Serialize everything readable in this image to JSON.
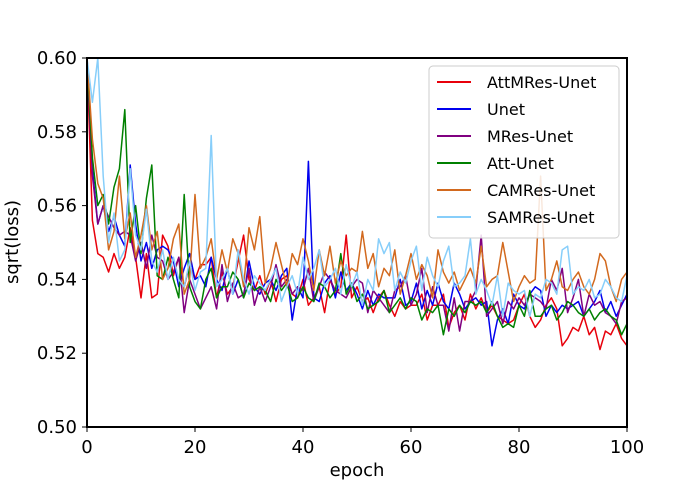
{
  "chart_data": {
    "type": "line",
    "xlabel": "epoch",
    "ylabel": "sqrt(loss)",
    "xlim": [
      0,
      100
    ],
    "ylim": [
      0.5,
      0.6
    ],
    "xticks": [
      0,
      20,
      40,
      60,
      80,
      100
    ],
    "yticks": [
      0.5,
      0.52,
      0.54,
      0.56,
      0.58,
      0.6
    ],
    "xtick_labels": [
      "0",
      "20",
      "40",
      "60",
      "80",
      "100"
    ],
    "ytick_labels": [
      "0.50",
      "0.52",
      "0.54",
      "0.56",
      "0.58",
      "0.60"
    ],
    "grid": false,
    "legend_position": "top-right",
    "x": [
      0,
      1,
      2,
      3,
      4,
      5,
      6,
      7,
      8,
      9,
      10,
      11,
      12,
      13,
      14,
      15,
      16,
      17,
      18,
      19,
      20,
      21,
      22,
      23,
      24,
      25,
      26,
      27,
      28,
      29,
      30,
      31,
      32,
      33,
      34,
      35,
      36,
      37,
      38,
      39,
      40,
      41,
      42,
      43,
      44,
      45,
      46,
      47,
      48,
      49,
      50,
      51,
      52,
      53,
      54,
      55,
      56,
      57,
      58,
      59,
      60,
      61,
      62,
      63,
      64,
      65,
      66,
      67,
      68,
      69,
      70,
      71,
      72,
      73,
      74,
      75,
      76,
      77,
      78,
      79,
      80,
      81,
      82,
      83,
      84,
      85,
      86,
      87,
      88,
      89,
      90,
      91,
      92,
      93,
      94,
      95,
      96,
      97,
      98,
      99,
      100
    ],
    "series": [
      {
        "name": "AttMRes-Unet",
        "color": "#e8000b",
        "values": [
          0.6,
          0.556,
          0.547,
          0.546,
          0.542,
          0.547,
          0.543,
          0.546,
          0.554,
          0.546,
          0.535,
          0.547,
          0.535,
          0.536,
          0.552,
          0.549,
          0.541,
          0.546,
          0.538,
          0.544,
          0.54,
          0.544,
          0.544,
          0.546,
          0.535,
          0.542,
          0.536,
          0.538,
          0.545,
          0.552,
          0.54,
          0.537,
          0.541,
          0.536,
          0.54,
          0.534,
          0.54,
          0.541,
          0.536,
          0.535,
          0.54,
          0.533,
          0.535,
          0.538,
          0.531,
          0.54,
          0.536,
          0.538,
          0.552,
          0.535,
          0.538,
          0.534,
          0.535,
          0.531,
          0.535,
          0.537,
          0.533,
          0.53,
          0.534,
          0.532,
          0.533,
          0.533,
          0.536,
          0.529,
          0.533,
          0.533,
          0.536,
          0.527,
          0.531,
          0.533,
          0.529,
          0.536,
          0.532,
          0.535,
          0.531,
          0.533,
          0.53,
          0.529,
          0.528,
          0.529,
          0.533,
          0.536,
          0.53,
          0.527,
          0.529,
          0.533,
          0.535,
          0.532,
          0.522,
          0.524,
          0.527,
          0.526,
          0.53,
          0.525,
          0.527,
          0.521,
          0.526,
          0.525,
          0.528,
          0.524,
          0.522
        ]
      },
      {
        "name": "Unet",
        "color": "#0000ee",
        "values": [
          0.6,
          0.57,
          0.555,
          0.56,
          0.553,
          0.557,
          0.552,
          0.549,
          0.571,
          0.555,
          0.545,
          0.55,
          0.543,
          0.548,
          0.549,
          0.548,
          0.545,
          0.538,
          0.543,
          0.547,
          0.54,
          0.541,
          0.538,
          0.546,
          0.54,
          0.537,
          0.543,
          0.536,
          0.54,
          0.535,
          0.545,
          0.538,
          0.536,
          0.539,
          0.54,
          0.537,
          0.541,
          0.543,
          0.529,
          0.538,
          0.535,
          0.572,
          0.535,
          0.534,
          0.539,
          0.541,
          0.535,
          0.542,
          0.537,
          0.539,
          0.536,
          0.532,
          0.537,
          0.533,
          0.536,
          0.535,
          0.535,
          0.535,
          0.54,
          0.533,
          0.534,
          0.539,
          0.532,
          0.537,
          0.533,
          0.539,
          0.534,
          0.532,
          0.539,
          0.536,
          0.532,
          0.534,
          0.535,
          0.533,
          0.534,
          0.522,
          0.529,
          0.532,
          0.528,
          0.536,
          0.533,
          0.532,
          0.536,
          0.538,
          0.537,
          0.53,
          0.533,
          0.531,
          0.533,
          0.532,
          0.533,
          0.534,
          0.53,
          0.532,
          0.534,
          0.537,
          0.531,
          0.534,
          0.53,
          0.533,
          0.536
        ]
      },
      {
        "name": "MRes-Unet",
        "color": "#800080",
        "values": [
          0.6,
          0.568,
          0.555,
          0.56,
          0.557,
          0.554,
          0.552,
          0.553,
          0.552,
          0.545,
          0.55,
          0.543,
          0.552,
          0.546,
          0.545,
          0.54,
          0.542,
          0.546,
          0.531,
          0.54,
          0.536,
          0.532,
          0.535,
          0.538,
          0.532,
          0.544,
          0.534,
          0.539,
          0.535,
          0.536,
          0.543,
          0.533,
          0.538,
          0.534,
          0.538,
          0.544,
          0.538,
          0.54,
          0.536,
          0.538,
          0.537,
          0.543,
          0.534,
          0.538,
          0.542,
          0.54,
          0.537,
          0.536,
          0.535,
          0.538,
          0.54,
          0.539,
          0.531,
          0.537,
          0.535,
          0.533,
          0.531,
          0.537,
          0.538,
          0.541,
          0.533,
          0.536,
          0.543,
          0.531,
          0.538,
          0.533,
          0.533,
          0.526,
          0.535,
          0.526,
          0.534,
          0.534,
          0.537,
          0.552,
          0.53,
          0.532,
          0.534,
          0.528,
          0.534,
          0.532,
          0.535,
          0.533,
          0.536,
          0.535,
          0.534,
          0.532,
          0.54,
          0.537,
          0.543,
          0.531,
          0.535,
          0.54,
          0.53,
          0.536,
          0.533,
          0.534,
          0.531,
          0.53,
          0.528,
          0.534,
          0.535
        ]
      },
      {
        "name": "Att-Unet",
        "color": "#008000",
        "values": [
          0.6,
          0.573,
          0.56,
          0.563,
          0.555,
          0.565,
          0.57,
          0.586,
          0.55,
          0.56,
          0.547,
          0.562,
          0.571,
          0.541,
          0.54,
          0.546,
          0.54,
          0.535,
          0.563,
          0.538,
          0.534,
          0.532,
          0.54,
          0.543,
          0.535,
          0.538,
          0.538,
          0.542,
          0.54,
          0.535,
          0.539,
          0.537,
          0.538,
          0.537,
          0.534,
          0.54,
          0.537,
          0.539,
          0.534,
          0.535,
          0.538,
          0.535,
          0.534,
          0.539,
          0.538,
          0.535,
          0.537,
          0.547,
          0.536,
          0.539,
          0.534,
          0.536,
          0.532,
          0.533,
          0.534,
          0.537,
          0.531,
          0.533,
          0.535,
          0.532,
          0.535,
          0.534,
          0.529,
          0.532,
          0.531,
          0.533,
          0.525,
          0.532,
          0.53,
          0.533,
          0.531,
          0.534,
          0.533,
          0.534,
          0.531,
          0.534,
          0.53,
          0.527,
          0.528,
          0.527,
          0.533,
          0.53,
          0.537,
          0.53,
          0.53,
          0.532,
          0.533,
          0.529,
          0.531,
          0.534,
          0.533,
          0.531,
          0.53,
          0.532,
          0.529,
          0.531,
          0.532,
          0.53,
          0.529,
          0.525,
          0.528
        ]
      },
      {
        "name": "CAMRes-Unet",
        "color": "#d2691e",
        "values": [
          0.6,
          0.578,
          0.566,
          0.562,
          0.548,
          0.553,
          0.568,
          0.551,
          0.558,
          0.546,
          0.552,
          0.56,
          0.548,
          0.553,
          0.54,
          0.543,
          0.551,
          0.555,
          0.536,
          0.54,
          0.563,
          0.543,
          0.546,
          0.551,
          0.54,
          0.548,
          0.542,
          0.551,
          0.547,
          0.538,
          0.554,
          0.548,
          0.557,
          0.539,
          0.543,
          0.55,
          0.544,
          0.538,
          0.547,
          0.544,
          0.551,
          0.545,
          0.537,
          0.548,
          0.541,
          0.549,
          0.539,
          0.545,
          0.541,
          0.543,
          0.542,
          0.553,
          0.543,
          0.547,
          0.538,
          0.543,
          0.541,
          0.548,
          0.536,
          0.541,
          0.547,
          0.54,
          0.544,
          0.541,
          0.535,
          0.548,
          0.542,
          0.539,
          0.542,
          0.537,
          0.54,
          0.543,
          0.539,
          0.549,
          0.538,
          0.54,
          0.541,
          0.55,
          0.542,
          0.534,
          0.538,
          0.541,
          0.539,
          0.54,
          0.568,
          0.537,
          0.54,
          0.545,
          0.538,
          0.537,
          0.54,
          0.542,
          0.538,
          0.536,
          0.54,
          0.547,
          0.545,
          0.538,
          0.534,
          0.54,
          0.542
        ]
      },
      {
        "name": "SAMRes-Unet",
        "color": "#87cefa",
        "values": [
          0.6,
          0.588,
          0.6,
          0.568,
          0.55,
          0.558,
          0.545,
          0.548,
          0.57,
          0.552,
          0.548,
          0.559,
          0.545,
          0.542,
          0.548,
          0.54,
          0.546,
          0.54,
          0.538,
          0.545,
          0.537,
          0.542,
          0.543,
          0.579,
          0.538,
          0.54,
          0.543,
          0.536,
          0.548,
          0.54,
          0.536,
          0.541,
          0.539,
          0.537,
          0.54,
          0.543,
          0.534,
          0.538,
          0.541,
          0.536,
          0.546,
          0.54,
          0.543,
          0.548,
          0.538,
          0.54,
          0.543,
          0.536,
          0.544,
          0.538,
          0.542,
          0.533,
          0.54,
          0.537,
          0.551,
          0.547,
          0.55,
          0.537,
          0.542,
          0.539,
          0.545,
          0.549,
          0.537,
          0.546,
          0.541,
          0.538,
          0.545,
          0.549,
          0.538,
          0.539,
          0.541,
          0.551,
          0.536,
          0.54,
          0.537,
          0.533,
          0.541,
          0.53,
          0.539,
          0.537,
          0.536,
          0.537,
          0.53,
          0.536,
          0.535,
          0.54,
          0.539,
          0.536,
          0.548,
          0.549,
          0.536,
          0.538,
          0.537,
          0.54,
          0.535,
          0.536,
          0.54,
          0.538,
          0.535,
          0.534,
          0.541
        ]
      }
    ]
  }
}
